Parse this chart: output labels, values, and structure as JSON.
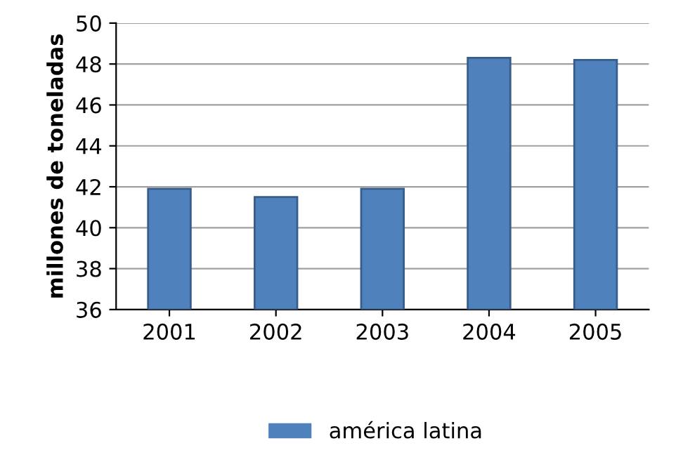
{
  "chart_data": {
    "type": "bar",
    "ylabel": "millones de toneladas",
    "categories": [
      "2001",
      "2002",
      "2003",
      "2004",
      "2005"
    ],
    "series": [
      {
        "name": "américa latina",
        "color": "#4f81bd",
        "values": [
          41.9,
          41.5,
          41.9,
          48.3,
          48.2
        ]
      }
    ],
    "ylim": [
      36,
      50
    ],
    "yticks": [
      36,
      38,
      40,
      42,
      44,
      46,
      48,
      50
    ],
    "grid": "y",
    "legend": "bottom"
  }
}
